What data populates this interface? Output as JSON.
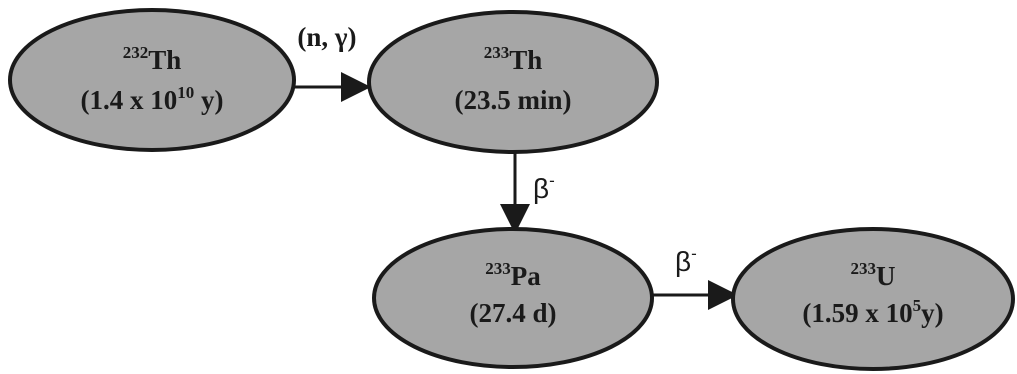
{
  "colors": {
    "node_fill": "#a6a6a6",
    "stroke": "#1a1a1a",
    "background": "#ffffff"
  },
  "nodes": {
    "th232": {
      "mass": "232",
      "symbol": "Th",
      "halflife_prefix": "(1.4 x 10",
      "halflife_exp": "10",
      "halflife_suffix": " y)"
    },
    "th233": {
      "mass": "233",
      "symbol": "Th",
      "halflife": "(23.5 min)"
    },
    "pa233": {
      "mass": "233",
      "symbol": "Pa",
      "halflife": "(27.4 d)"
    },
    "u233": {
      "mass": "233",
      "symbol": "U",
      "halflife_prefix": "(1.59 x 10",
      "halflife_exp": "5",
      "halflife_suffix": "y)"
    }
  },
  "edges": {
    "capture": {
      "label": "(n, γ)"
    },
    "beta1": {
      "label": "β",
      "sup": "-"
    },
    "beta2": {
      "label": "β",
      "sup": "-"
    }
  }
}
